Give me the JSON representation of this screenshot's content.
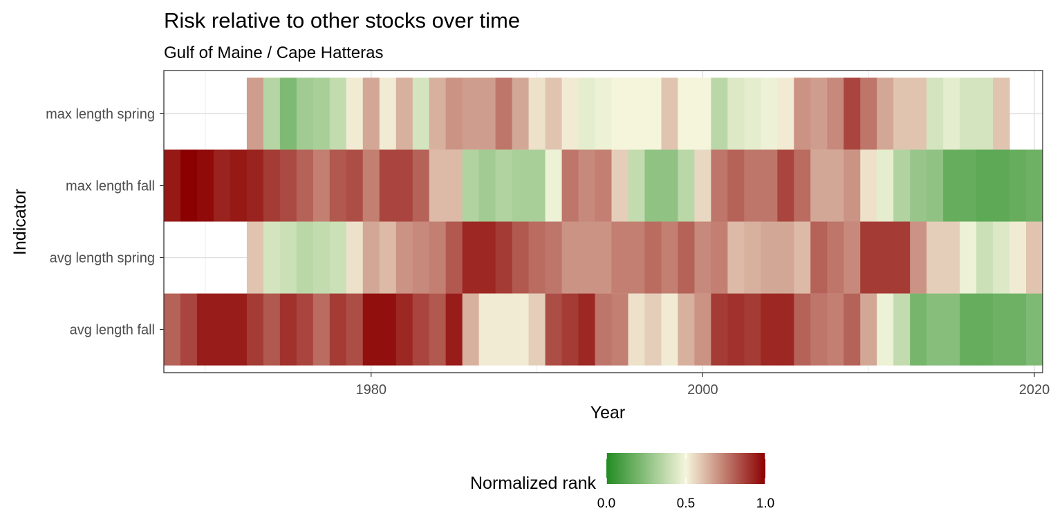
{
  "chart_data": {
    "type": "heatmap",
    "title": "Risk relative to other stocks over time",
    "subtitle": "Gulf of Maine / Cape Hatteras",
    "xlabel": "Year",
    "ylabel": "Indicator",
    "xlim": [
      1967.5,
      2020.5
    ],
    "x_ticks": [
      1980,
      2000,
      2020
    ],
    "x_tick_labels": [
      "1980",
      "2000",
      "2020"
    ],
    "y_categories": [
      "max length spring",
      "max length fall",
      "avg length spring",
      "avg length fall"
    ],
    "grid": true,
    "legend": {
      "title": "Normalized rank",
      "placement": "bottom",
      "min": 0.0,
      "max": 1.0,
      "ticks": [
        0.0,
        0.5,
        1.0
      ],
      "tick_labels": [
        "0.0",
        "0.5",
        "1.0"
      ],
      "colors": [
        "#228b22",
        "#f5f5dc",
        "#8b0000"
      ]
    },
    "series": [
      {
        "name": "max length spring",
        "start_year": 1973,
        "values": [
          0.68,
          0.35,
          0.22,
          0.3,
          0.32,
          0.38,
          0.52,
          0.66,
          0.52,
          0.64,
          0.42,
          0.64,
          0.7,
          0.68,
          0.68,
          0.76,
          0.66,
          0.54,
          0.6,
          0.52,
          0.46,
          0.48,
          0.5,
          0.5,
          0.5,
          0.6,
          0.5,
          0.5,
          0.36,
          0.44,
          0.46,
          0.48,
          0.52,
          0.7,
          0.68,
          0.72,
          0.86,
          0.76,
          0.66,
          0.6,
          0.6,
          0.42,
          0.46,
          0.42,
          0.42,
          0.6
        ]
      },
      {
        "name": "max length fall",
        "start_year": 1968,
        "values": [
          0.95,
          1.0,
          0.98,
          0.93,
          0.95,
          0.93,
          0.88,
          0.85,
          0.8,
          0.74,
          0.82,
          0.84,
          0.74,
          0.86,
          0.86,
          0.8,
          0.62,
          0.62,
          0.34,
          0.3,
          0.34,
          0.32,
          0.32,
          0.48,
          0.76,
          0.72,
          0.74,
          0.58,
          0.38,
          0.26,
          0.26,
          0.36,
          0.56,
          0.76,
          0.8,
          0.76,
          0.76,
          0.86,
          0.78,
          0.66,
          0.66,
          0.7,
          0.54,
          0.46,
          0.34,
          0.28,
          0.26,
          0.16,
          0.16,
          0.14,
          0.14,
          0.16,
          0.18
        ]
      },
      {
        "name": "avg length spring",
        "start_year": 1973,
        "values": [
          0.6,
          0.42,
          0.4,
          0.36,
          0.38,
          0.4,
          0.54,
          0.66,
          0.62,
          0.7,
          0.72,
          0.74,
          0.82,
          0.92,
          0.92,
          0.88,
          0.82,
          0.78,
          0.76,
          0.7,
          0.7,
          0.7,
          0.74,
          0.74,
          0.78,
          0.74,
          0.8,
          0.72,
          0.74,
          0.62,
          0.64,
          0.66,
          0.66,
          0.62,
          0.8,
          0.76,
          0.72,
          0.88,
          0.88,
          0.88,
          0.7,
          0.58,
          0.58,
          0.48,
          0.4,
          0.44,
          0.52,
          0.6
        ]
      },
      {
        "name": "avg length fall",
        "start_year": 1968,
        "values": [
          0.8,
          0.86,
          0.94,
          0.94,
          0.94,
          0.88,
          0.82,
          0.9,
          0.86,
          0.78,
          0.88,
          0.84,
          0.97,
          0.97,
          0.92,
          0.86,
          0.82,
          0.94,
          0.64,
          0.52,
          0.52,
          0.52,
          0.58,
          0.84,
          0.88,
          0.92,
          0.76,
          0.74,
          0.54,
          0.58,
          0.52,
          0.64,
          0.7,
          0.88,
          0.9,
          0.88,
          0.92,
          0.92,
          0.8,
          0.76,
          0.74,
          0.8,
          0.66,
          0.48,
          0.38,
          0.2,
          0.24,
          0.24,
          0.16,
          0.16,
          0.18,
          0.18,
          0.22
        ]
      }
    ]
  }
}
